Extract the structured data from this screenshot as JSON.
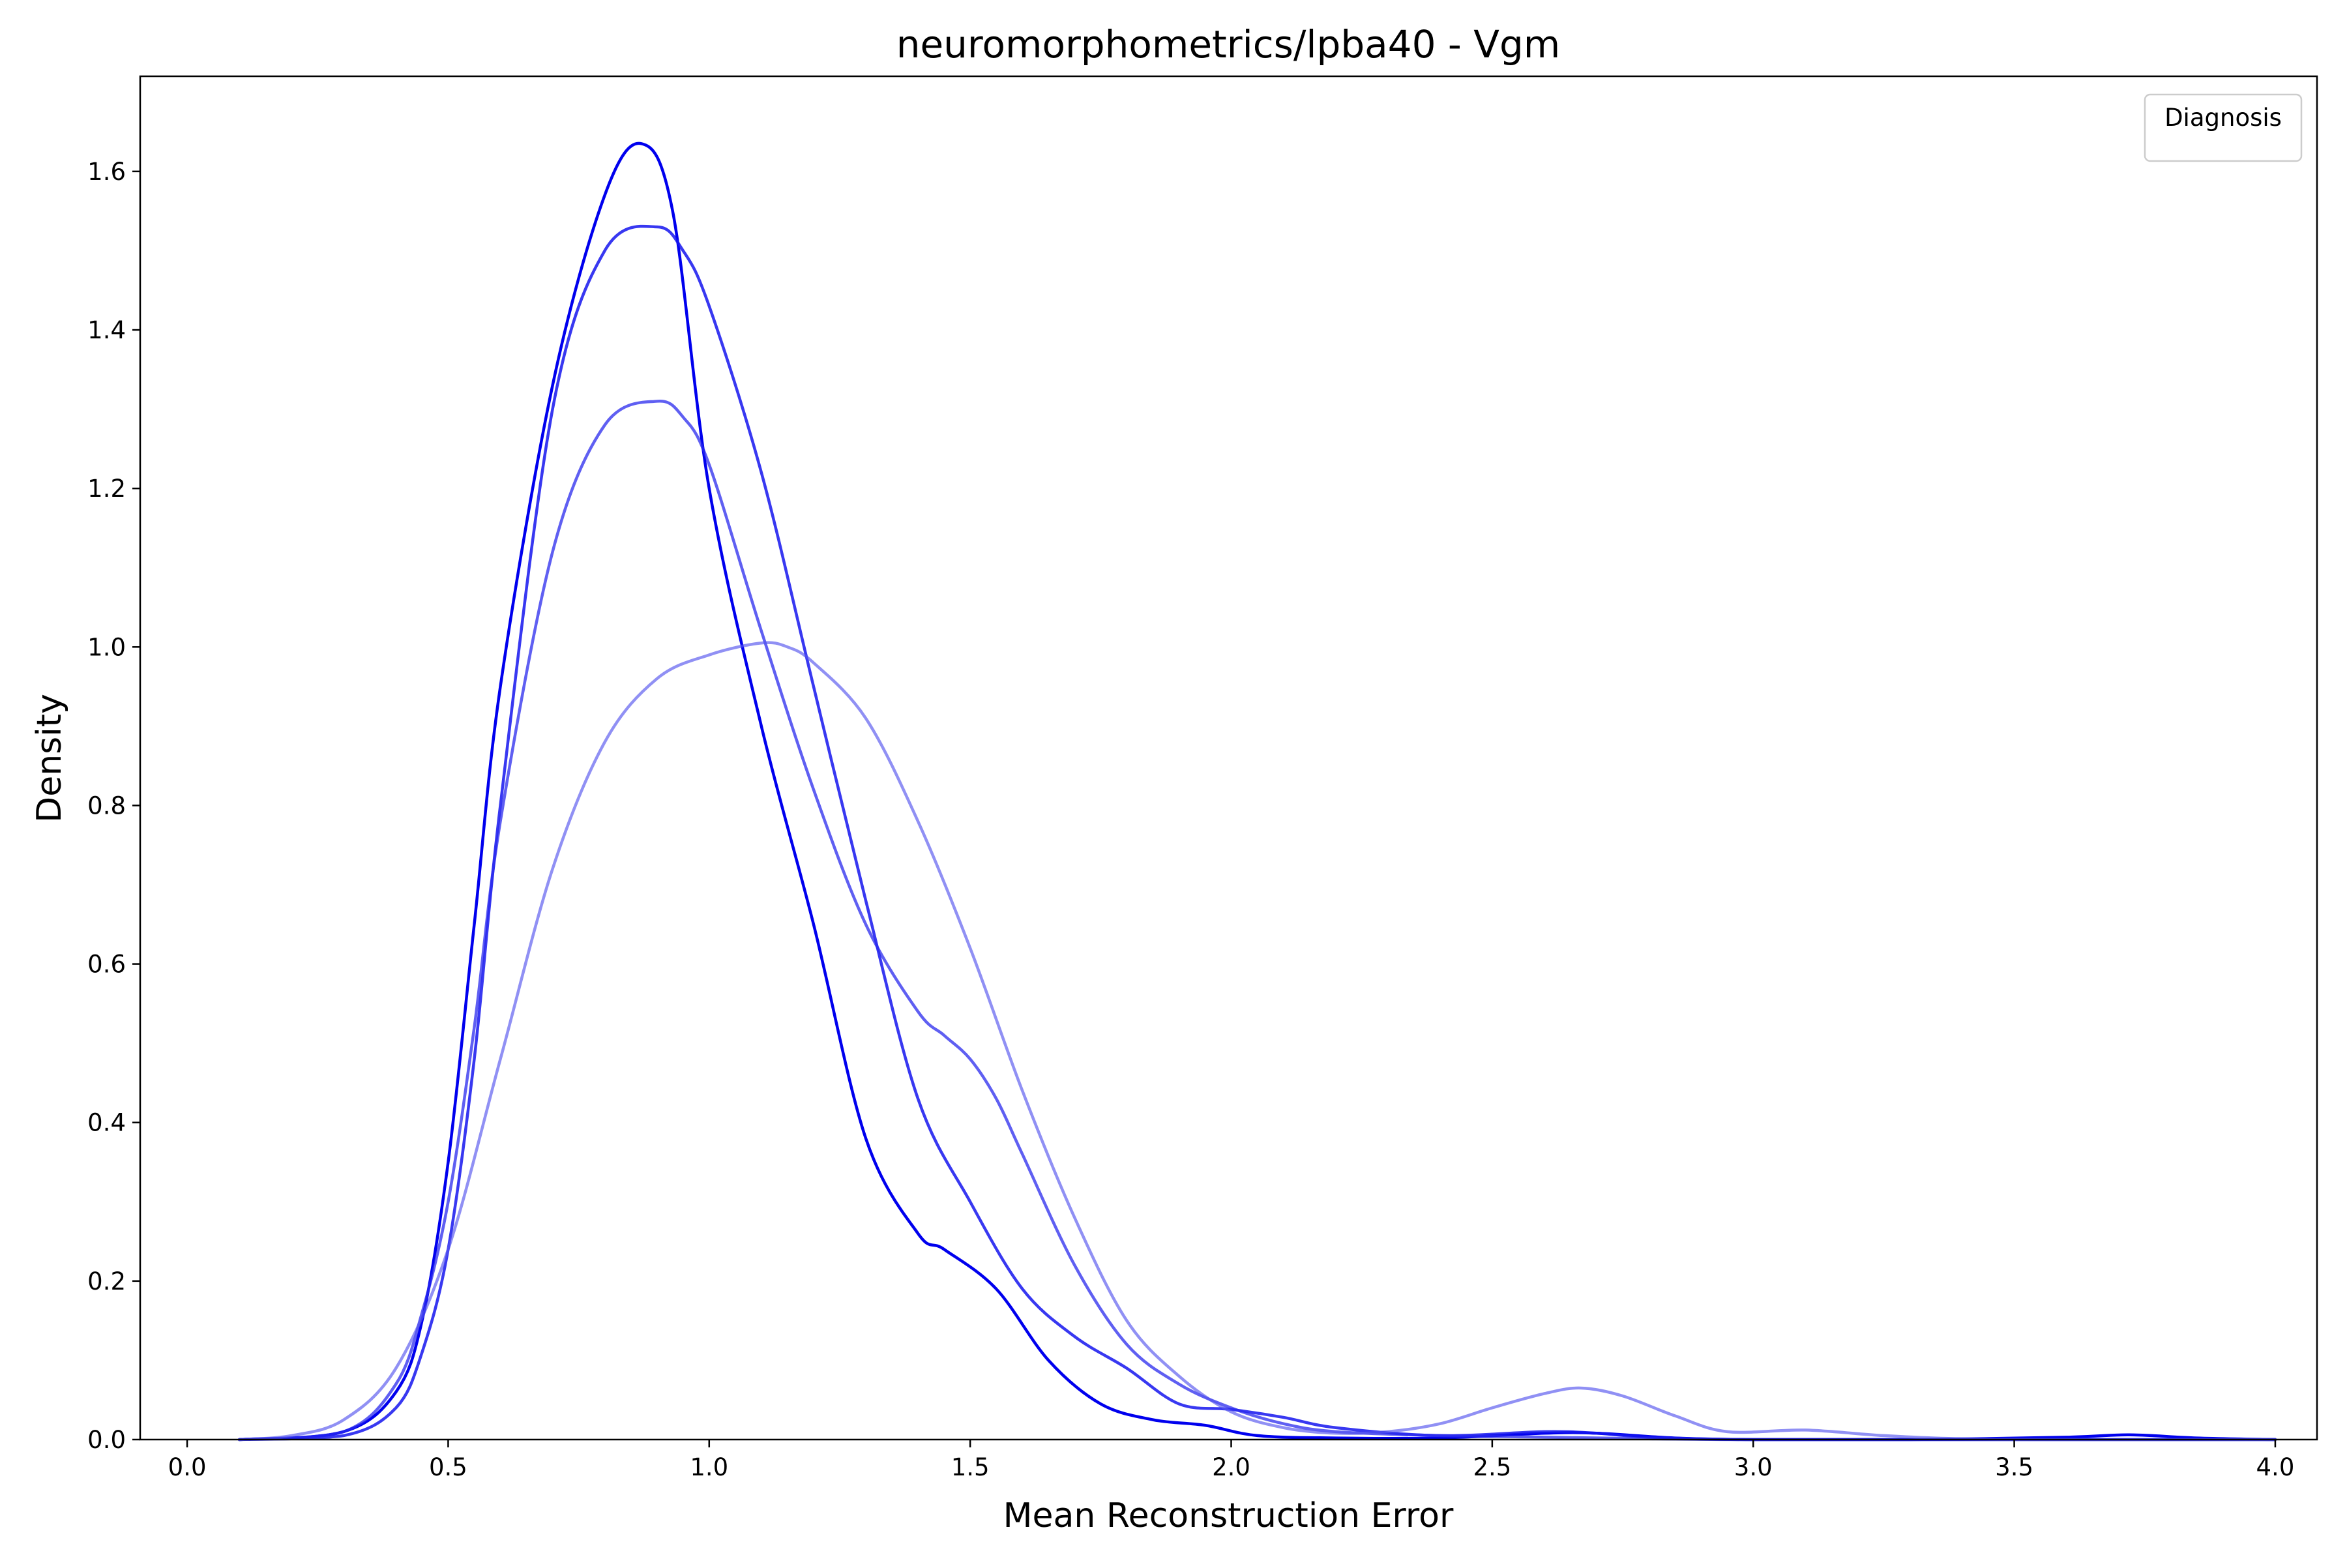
{
  "chart_data": {
    "type": "line",
    "title": "neuromorphometrics/lpba40 - Vgm",
    "xlabel": "Mean Reconstruction Error",
    "ylabel": "Density",
    "xlim": [
      -0.09,
      4.08
    ],
    "ylim": [
      0,
      1.72
    ],
    "xticks": [
      0.0,
      0.5,
      1.0,
      1.5,
      2.0,
      2.5,
      3.0,
      3.5,
      4.0
    ],
    "xtick_labels": [
      "0.0",
      "0.5",
      "1.0",
      "1.5",
      "2.0",
      "2.5",
      "3.0",
      "3.5",
      "4.0"
    ],
    "yticks": [
      0.0,
      0.2,
      0.4,
      0.6,
      0.8,
      1.0,
      1.2,
      1.4,
      1.6
    ],
    "ytick_labels": [
      "0.0",
      "0.2",
      "0.4",
      "0.6",
      "0.8",
      "1.0",
      "1.2",
      "1.4",
      "1.6"
    ],
    "grid": false,
    "legend": {
      "title": "Diagnosis",
      "position": "top-right",
      "entries": []
    },
    "series": [
      {
        "color": "#0000ee",
        "opacity": 1.0,
        "x": [
          0.1,
          0.3,
          0.4,
          0.45,
          0.5,
          0.55,
          0.6,
          0.7,
          0.8,
          0.87,
          0.93,
          1.0,
          1.1,
          1.2,
          1.3,
          1.4,
          1.45,
          1.55,
          1.65,
          1.75,
          1.85,
          1.95,
          2.05,
          2.2,
          2.4,
          2.6,
          2.7,
          2.85,
          3.0,
          3.3,
          3.6,
          3.72,
          3.85,
          4.0
        ],
        "y": [
          0.0,
          0.01,
          0.06,
          0.15,
          0.35,
          0.65,
          0.95,
          1.33,
          1.57,
          1.635,
          1.55,
          1.2,
          0.9,
          0.65,
          0.38,
          0.26,
          0.24,
          0.19,
          0.1,
          0.045,
          0.025,
          0.018,
          0.005,
          0.002,
          0.002,
          0.008,
          0.008,
          0.002,
          0.0,
          0.0,
          0.003,
          0.006,
          0.002,
          0.0
        ]
      },
      {
        "color": "#1515ee",
        "opacity": 0.85,
        "x": [
          0.1,
          0.3,
          0.4,
          0.45,
          0.5,
          0.55,
          0.6,
          0.7,
          0.8,
          0.9,
          0.95,
          1.0,
          1.1,
          1.2,
          1.3,
          1.4,
          1.5,
          1.6,
          1.7,
          1.8,
          1.9,
          2.0,
          2.1,
          2.2,
          2.4,
          2.6,
          2.7,
          2.8,
          3.0,
          3.5,
          4.0
        ],
        "y": [
          0.0,
          0.005,
          0.04,
          0.11,
          0.24,
          0.48,
          0.8,
          1.3,
          1.5,
          1.53,
          1.5,
          1.43,
          1.22,
          0.95,
          0.68,
          0.43,
          0.3,
          0.19,
          0.13,
          0.09,
          0.045,
          0.038,
          0.028,
          0.015,
          0.005,
          0.01,
          0.008,
          0.003,
          0.0,
          0.0,
          0.0
        ]
      },
      {
        "color": "#2a2aee",
        "opacity": 0.75,
        "x": [
          0.1,
          0.3,
          0.4,
          0.45,
          0.5,
          0.55,
          0.6,
          0.7,
          0.8,
          0.9,
          0.95,
          1.0,
          1.1,
          1.2,
          1.3,
          1.4,
          1.45,
          1.5,
          1.55,
          1.6,
          1.7,
          1.8,
          1.9,
          2.0,
          2.1,
          2.2,
          2.4,
          2.6,
          2.8,
          3.0,
          3.5,
          4.0
        ],
        "y": [
          0.0,
          0.01,
          0.07,
          0.16,
          0.3,
          0.52,
          0.78,
          1.12,
          1.28,
          1.31,
          1.29,
          1.23,
          1.02,
          0.82,
          0.65,
          0.54,
          0.51,
          0.48,
          0.43,
          0.36,
          0.22,
          0.12,
          0.07,
          0.04,
          0.02,
          0.01,
          0.005,
          0.003,
          0.001,
          0.0,
          0.0,
          0.0
        ]
      },
      {
        "color": "#5555ee",
        "opacity": 0.65,
        "x": [
          0.1,
          0.2,
          0.3,
          0.4,
          0.5,
          0.6,
          0.7,
          0.8,
          0.9,
          1.0,
          1.1,
          1.15,
          1.2,
          1.3,
          1.4,
          1.5,
          1.6,
          1.7,
          1.8,
          1.9,
          2.0,
          2.1,
          2.2,
          2.3,
          2.4,
          2.5,
          2.6,
          2.67,
          2.75,
          2.85,
          2.95,
          3.1,
          3.25,
          3.4,
          3.6,
          4.0
        ],
        "y": [
          0.0,
          0.005,
          0.025,
          0.09,
          0.24,
          0.48,
          0.72,
          0.88,
          0.96,
          0.99,
          1.005,
          1.0,
          0.98,
          0.91,
          0.78,
          0.62,
          0.44,
          0.28,
          0.15,
          0.08,
          0.035,
          0.015,
          0.008,
          0.01,
          0.02,
          0.04,
          0.058,
          0.065,
          0.055,
          0.03,
          0.01,
          0.012,
          0.005,
          0.001,
          0.0,
          0.0
        ]
      }
    ]
  }
}
